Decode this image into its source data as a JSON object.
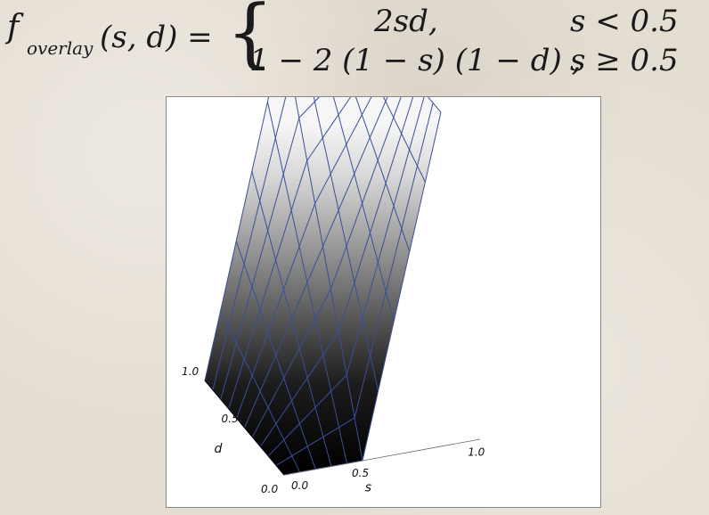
{
  "formula": {
    "lhs_f": "f",
    "lhs_sub": "overlay",
    "lhs_args": "(s, d) =",
    "case1_expr": "2sd,",
    "case1_cond": "s < 0.5",
    "case2_expr": "1 − 2 (1 − s) (1 − d) ,",
    "case2_cond": "s ≥ 0.5"
  },
  "plot": {
    "s_axis_label": "s",
    "d_axis_label": "d",
    "s_ticks": [
      "0.0",
      "0.5",
      "1.0"
    ],
    "d_ticks": [
      "0.0",
      "0.5",
      "1.0"
    ],
    "grid_color": "#3a4f9a",
    "surface_low_color": "#000000",
    "surface_high_color": "#ffffff"
  }
}
